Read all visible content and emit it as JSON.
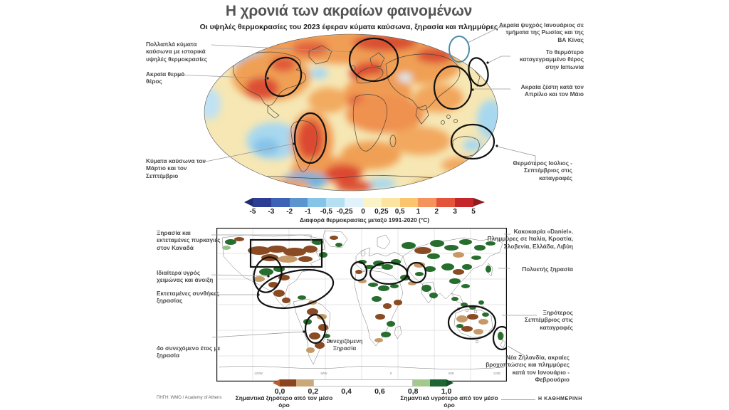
{
  "header": {
    "title": "Η χρονιά των ακραίων φαινομένων",
    "subtitle": "Οι υψηλές θερμοκρασίες του 2023 έφεραν κύματα καύσωνα, ξηρασία και πλημμύρες"
  },
  "temp_map": {
    "annotations_left": [
      "Πολλαπλά κύματα καύσωνα με ιστορικά υψηλές θερμοκρασίες",
      "Ακραία θερμό θέρος",
      "Κύματα καύσωνα τον Μάρτιο και τον Σεπτέμβριο"
    ],
    "annotations_right": [
      "Ακραία ψυχρός Ιανουάριος σε τμήματα της Ρωσίας και της ΒΑ Κίνας",
      "Το θερμότερο καταγεγραμμένο θέρος στην Ιαπωνία",
      "Ακραία ζέστη κατά τον Απρίλιο και τον Μάιο",
      "Θερμότερος Ιούλιος - Σεπτέμβριος στις καταγραφές"
    ]
  },
  "temp_scale": {
    "caption": "Διαφορά θερμοκρασίας μεταξύ 1991-2020 (°C)",
    "ticks": [
      "-5",
      "-3",
      "-2",
      "-1",
      "-0,5",
      "-0,25",
      "0",
      "0,25",
      "0,5",
      "1",
      "2",
      "3",
      "5"
    ],
    "arrow_left": "#1f2b72",
    "arrow_right": "#8e1c20",
    "segments": [
      {
        "color": "#2c3d94",
        "span": 1
      },
      {
        "color": "#3c62b5",
        "span": 1
      },
      {
        "color": "#5b94cf",
        "span": 1
      },
      {
        "color": "#85c4e6",
        "span": 1
      },
      {
        "color": "#b5dff2",
        "span": 1
      },
      {
        "color": "#e1f2fa",
        "span": 1
      },
      {
        "color": "#faf3c8",
        "span": 1
      },
      {
        "color": "#fce3a0",
        "span": 1
      },
      {
        "color": "#fbc46f",
        "span": 1
      },
      {
        "color": "#f4945c",
        "span": 1
      },
      {
        "color": "#e4543a",
        "span": 1
      },
      {
        "color": "#c5262a",
        "span": 1
      }
    ]
  },
  "precip_map": {
    "annotations_left": [
      "Ξηρασία και εκτεταμένες πυρκαγιές στον Καναδά",
      "Ιδιαίτερα υγρός χειμώνας και άνοιξη",
      "Εκτεταμένες συνθήκες ξηρασίας",
      "4ο συνεχόμενο έτος με ξηρασία"
    ],
    "annotations_right": [
      "Κακοκαιρία «Daniel». Πλημμύρες σε Ιταλία, Κροατία, Σλοβενία, Ελλάδα, Λιβύη",
      "Πολυετής ξηρασία",
      "Ξηρότερος Σεπτέμβριος στις καταγραφές",
      "Νέα Ζηλανδία, ακραίες βροχοπτώσεις και πλημμύρες κατά τον Ιανουάριο - Φεβρουάριο"
    ],
    "center_label": [
      "Συνεχιζόμενη",
      "Ξηρασία"
    ],
    "axis_labels": [
      "120W",
      "60W",
      "0",
      "60E",
      "120E"
    ]
  },
  "precip_scale": {
    "ticks": [
      "0,0",
      "0,2",
      "0,4",
      "0,6",
      "0,8",
      "1,0"
    ],
    "arrow_left": "#c05c2c",
    "arrow_right": "#164f27",
    "segments": [
      {
        "color": "#8a4520",
        "span": 1
      },
      {
        "color": "#c9a87c",
        "span": 1
      },
      {
        "color": "#ffffff",
        "span": 6
      },
      {
        "color": "#a3c98f",
        "span": 1
      },
      {
        "color": "#1d6633",
        "span": 1
      }
    ],
    "label_left": "Σημαντικά ξηρότερο από τον μέσο όρο",
    "label_right": "Σημαντικά υγρότερο από τον μέσο όρο"
  },
  "footer": {
    "source": "ΠΗΓΗ: WMO / Academy of Athens",
    "brand": "Η ΚΑΘΗΜΕΡΙΝΗ"
  },
  "chart_data": [
    {
      "type": "heatmap",
      "title": "Η χρονιά των ακραίων φαινομένων",
      "subtitle": "Οι υψηλές θερμοκρασίες του 2023 έφεραν κύματα καύσωνα, ξηρασία και πλημμύρες",
      "map": "world-temperature-anomaly-2023",
      "legend": {
        "label": "Διαφορά θερμοκρασίας μεταξύ 1991-2020 (°C)",
        "ticks": [
          -5,
          -3,
          -2,
          -1,
          -0.5,
          -0.25,
          0,
          0.25,
          0.5,
          1,
          2,
          3,
          5
        ],
        "colors": [
          "#2c3d94",
          "#3c62b5",
          "#5b94cf",
          "#85c4e6",
          "#b5dff2",
          "#e1f2fa",
          "#faf3c8",
          "#fce3a0",
          "#fbc46f",
          "#f4945c",
          "#e4543a",
          "#c5262a"
        ]
      },
      "highlighted_events": [
        {
          "region": "Ευρώπη",
          "text": "Πολλαπλά κύματα καύσωνα με ιστορικά υψηλές θερμοκρασίες"
        },
        {
          "region": "Δυτική Β. Αμερική",
          "text": "Ακραία θερμό θέρος"
        },
        {
          "region": "Νότια Αμερική",
          "text": "Κύματα καύσωνα τον Μάρτιο και τον Σεπτέμβριο"
        },
        {
          "region": "Ρωσία / ΒΑ Κίνα",
          "text": "Ακραία ψυχρός Ιανουάριος σε τμήματα της Ρωσίας και της ΒΑ Κίνας"
        },
        {
          "region": "Ιαπωνία",
          "text": "Το θερμότερο καταγεγραμμένο θέρος στην Ιαπωνία"
        },
        {
          "region": "ΝΑ Ασία",
          "text": "Ακραία ζέστη κατά τον Απρίλιο και τον Μάιο"
        },
        {
          "region": "Αυστραλία",
          "text": "Θερμότερος Ιούλιος - Σεπτέμβριος στις καταγραφές"
        }
      ]
    },
    {
      "type": "heatmap",
      "map": "world-precipitation-anomaly-2023",
      "legend": {
        "ticks": [
          0.0,
          0.2,
          0.4,
          0.6,
          0.8,
          1.0
        ],
        "colors": [
          "#8a4520",
          "#c9a87c",
          "#ffffff",
          "#a3c98f",
          "#1d6633"
        ],
        "label_left": "Σημαντικά ξηρότερο από τον μέσο όρο",
        "label_right": "Σημαντικά υγρότερο από τον μέσο όρο"
      },
      "axis_labels": [
        "120W",
        "60W",
        "0",
        "60E",
        "120E"
      ],
      "highlighted_events": [
        {
          "region": "Καναδάς",
          "text": "Ξηρασία και εκτεταμένες πυρκαγιές στον Καναδά"
        },
        {
          "region": "Νότιες ΗΠΑ",
          "text": "Ιδιαίτερα υγρός χειμώνας και άνοιξη"
        },
        {
          "region": "Μεξικό / Κεντρική Αμερική",
          "text": "Εκτεταμένες συνθήκες ξηρασίας"
        },
        {
          "region": "Νότια Νότια Αμερική",
          "text": "4ο συνεχόμενο έτος με ξηρασία"
        },
        {
          "region": "Μεσόγειος",
          "text": "Κακοκαιρία «Daniel». Πλημμύρες σε Ιταλία, Κροατία, Σλοβενία, Ελλάδα, Λιβύη"
        },
        {
          "region": "Μέση Ανατολή",
          "text": "Πολυετής ξηρασία"
        },
        {
          "region": "Αυστραλία",
          "text": "Ξηρότερος Σεπτέμβριος στις καταγραφές"
        },
        {
          "region": "Νέα Ζηλανδία",
          "text": "Νέα Ζηλανδία, ακραίες βροχοπτώσεις και πλημμύρες κατά τον Ιανουάριο - Φεβρουάριο"
        },
        {
          "region": "Νότιος Ατλαντικός",
          "text": "Συνεχιζόμενη Ξηρασία"
        }
      ]
    }
  ]
}
